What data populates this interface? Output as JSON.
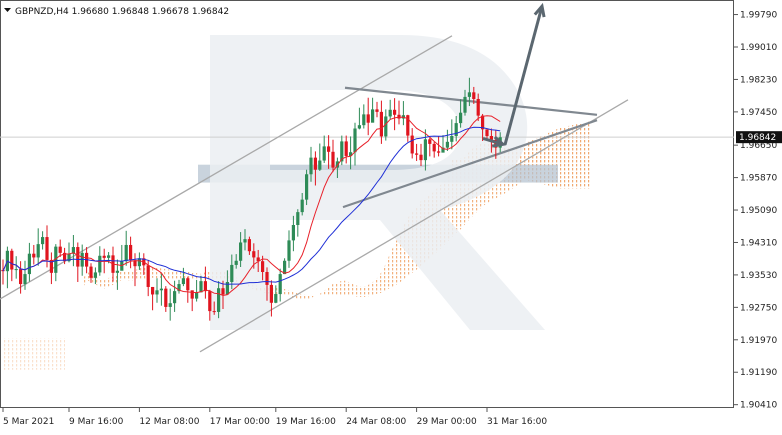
{
  "chart_data": {
    "type": "candlestick",
    "symbol_line": "GBPNZD,H4  1.96680  1.96848  1.96678  1.96842",
    "current_price": 1.96842,
    "current_price_label": "1.96842",
    "ylim": [
      1.9033,
      2.0014
    ],
    "y_ticks": [
      {
        "value": 1.9979,
        "label": "1.99790"
      },
      {
        "value": 1.9901,
        "label": "1.99010"
      },
      {
        "value": 1.9823,
        "label": "1.98230"
      },
      {
        "value": 1.9745,
        "label": "1.97450"
      },
      {
        "value": 1.9665,
        "label": "1.96650"
      },
      {
        "value": 1.9587,
        "label": "1.95870"
      },
      {
        "value": 1.9509,
        "label": "1.95090"
      },
      {
        "value": 1.9431,
        "label": "1.94310"
      },
      {
        "value": 1.9353,
        "label": "1.93530"
      },
      {
        "value": 1.9275,
        "label": "1.92750"
      },
      {
        "value": 1.9197,
        "label": "1.91970"
      },
      {
        "value": 1.9119,
        "label": "1.91190"
      },
      {
        "value": 1.9041,
        "label": "1.90410"
      }
    ],
    "x_ticks": [
      {
        "bar": 0,
        "label": "5 Mar 2021"
      },
      {
        "bar": 15,
        "label": "9 Mar 16:00"
      },
      {
        "bar": 31,
        "label": "12 Mar 08:00"
      },
      {
        "bar": 47,
        "label": "17 Mar 00:00"
      },
      {
        "bar": 62,
        "label": "19 Mar 16:00"
      },
      {
        "bar": 78,
        "label": "24 Mar 08:00"
      },
      {
        "bar": 94,
        "label": "29 Mar 00:00"
      },
      {
        "bar": 110,
        "label": "31 Mar 16:00"
      }
    ],
    "candles": [
      [
        1.9365,
        1.9362,
        1.939,
        1.933
      ],
      [
        1.9362,
        1.9411,
        1.9421,
        1.9321
      ],
      [
        1.9411,
        1.9366,
        1.9416,
        1.9338
      ],
      [
        1.9366,
        1.9367,
        1.9398,
        1.9344
      ],
      [
        1.9367,
        1.9331,
        1.9386,
        1.9308
      ],
      [
        1.9331,
        1.9355,
        1.9387,
        1.9317
      ],
      [
        1.9355,
        1.9404,
        1.943,
        1.9337
      ],
      [
        1.9404,
        1.9395,
        1.9425,
        1.9378
      ],
      [
        1.9395,
        1.9427,
        1.9465,
        1.9375
      ],
      [
        1.9427,
        1.9444,
        1.9458,
        1.9414
      ],
      [
        1.9444,
        1.9389,
        1.9472,
        1.9371
      ],
      [
        1.9389,
        1.9358,
        1.9407,
        1.9331
      ],
      [
        1.9358,
        1.9421,
        1.9427,
        1.9338
      ],
      [
        1.9421,
        1.9406,
        1.9438,
        1.9396
      ],
      [
        1.9406,
        1.9386,
        1.9418,
        1.9379
      ],
      [
        1.9386,
        1.9404,
        1.9431,
        1.9383
      ],
      [
        1.9404,
        1.942,
        1.9449,
        1.9374
      ],
      [
        1.942,
        1.9373,
        1.9431,
        1.9336
      ],
      [
        1.9373,
        1.9406,
        1.9426,
        1.9351
      ],
      [
        1.9406,
        1.9373,
        1.942,
        1.9357
      ],
      [
        1.9373,
        1.9346,
        1.9381,
        1.9334
      ],
      [
        1.9346,
        1.9359,
        1.9371,
        1.9331
      ],
      [
        1.9359,
        1.9399,
        1.9422,
        1.9351
      ],
      [
        1.9399,
        1.9394,
        1.9416,
        1.9357
      ],
      [
        1.9394,
        1.94,
        1.9408,
        1.9381
      ],
      [
        1.94,
        1.9358,
        1.9421,
        1.9337
      ],
      [
        1.9358,
        1.9363,
        1.939,
        1.9317
      ],
      [
        1.9363,
        1.9386,
        1.9425,
        1.9371
      ],
      [
        1.9386,
        1.9425,
        1.9459,
        1.9375
      ],
      [
        1.9425,
        1.9388,
        1.9445,
        1.9369
      ],
      [
        1.9388,
        1.9374,
        1.9405,
        1.9326
      ],
      [
        1.9374,
        1.9393,
        1.9407,
        1.9365
      ],
      [
        1.9393,
        1.9376,
        1.9405,
        1.9353
      ],
      [
        1.9376,
        1.9324,
        1.9389,
        1.9302
      ],
      [
        1.9324,
        1.9306,
        1.9324,
        1.9268
      ],
      [
        1.9306,
        1.9316,
        1.9345,
        1.9286
      ],
      [
        1.9316,
        1.932,
        1.9356,
        1.9279
      ],
      [
        1.932,
        1.9276,
        1.9326,
        1.9264
      ],
      [
        1.9276,
        1.9285,
        1.932,
        1.9243
      ],
      [
        1.9285,
        1.9314,
        1.9339,
        1.9264
      ],
      [
        1.9314,
        1.9331,
        1.9341,
        1.9308
      ],
      [
        1.9331,
        1.9345,
        1.937,
        1.9326
      ],
      [
        1.9345,
        1.9316,
        1.9349,
        1.9286
      ],
      [
        1.9316,
        1.9296,
        1.9306,
        1.9266
      ],
      [
        1.9296,
        1.9311,
        1.9341,
        1.9289
      ],
      [
        1.9311,
        1.9338,
        1.9351,
        1.9313
      ],
      [
        1.9338,
        1.9314,
        1.9373,
        1.9296
      ],
      [
        1.9314,
        1.9266,
        1.9317,
        1.9243
      ],
      [
        1.9266,
        1.9264,
        1.9289,
        1.9257
      ],
      [
        1.9264,
        1.9321,
        1.9338,
        1.9249
      ],
      [
        1.9321,
        1.9306,
        1.9339,
        1.9271
      ],
      [
        1.9306,
        1.9336,
        1.9364,
        1.9309
      ],
      [
        1.9336,
        1.9377,
        1.9402,
        1.9319
      ],
      [
        1.9377,
        1.9387,
        1.9403,
        1.9368
      ],
      [
        1.9387,
        1.9431,
        1.9456,
        1.9372
      ],
      [
        1.9431,
        1.9439,
        1.9463,
        1.9412
      ],
      [
        1.9439,
        1.941,
        1.9445,
        1.9401
      ],
      [
        1.941,
        1.9395,
        1.9429,
        1.9368
      ],
      [
        1.9395,
        1.9386,
        1.9413,
        1.936
      ],
      [
        1.9386,
        1.936,
        1.9399,
        1.934
      ],
      [
        1.936,
        1.9329,
        1.9371,
        1.9291
      ],
      [
        1.9329,
        1.9286,
        1.934,
        1.9253
      ],
      [
        1.9286,
        1.9307,
        1.9328,
        1.9285
      ],
      [
        1.9307,
        1.9355,
        1.9368,
        1.9289
      ],
      [
        1.9355,
        1.9387,
        1.9393,
        1.9355
      ],
      [
        1.9387,
        1.9436,
        1.946,
        1.937
      ],
      [
        1.9436,
        1.9473,
        1.9495,
        1.941
      ],
      [
        1.9473,
        1.9504,
        1.9511,
        1.9445
      ],
      [
        1.9504,
        1.9534,
        1.955,
        1.9496
      ],
      [
        1.9534,
        1.9595,
        1.9606,
        1.9521
      ],
      [
        1.9595,
        1.9635,
        1.9661,
        1.9577
      ],
      [
        1.9635,
        1.9606,
        1.965,
        1.9568
      ],
      [
        1.9606,
        1.9628,
        1.9669,
        1.9603
      ],
      [
        1.9628,
        1.9662,
        1.9688,
        1.9622
      ],
      [
        1.9662,
        1.9649,
        1.9689,
        1.9608
      ],
      [
        1.9649,
        1.9611,
        1.9678,
        1.96
      ],
      [
        1.9611,
        1.9626,
        1.9635,
        1.9586
      ],
      [
        1.9626,
        1.9674,
        1.9688,
        1.9617
      ],
      [
        1.9674,
        1.9639,
        1.9688,
        1.9621
      ],
      [
        1.9639,
        1.9648,
        1.9686,
        1.9607
      ],
      [
        1.9648,
        1.9705,
        1.9719,
        1.9616
      ],
      [
        1.9705,
        1.9713,
        1.9755,
        1.9703
      ],
      [
        1.9713,
        1.9739,
        1.9763,
        1.9705
      ],
      [
        1.9739,
        1.9719,
        1.9779,
        1.9689
      ],
      [
        1.9719,
        1.9751,
        1.9779,
        1.9734
      ],
      [
        1.9751,
        1.9745,
        1.9769,
        1.9732
      ],
      [
        1.9745,
        1.9686,
        1.9772,
        1.9668
      ],
      [
        1.9686,
        1.9734,
        1.9751,
        1.9676
      ],
      [
        1.9734,
        1.975,
        1.9774,
        1.9727
      ],
      [
        1.975,
        1.9738,
        1.9778,
        1.9701
      ],
      [
        1.9738,
        1.9729,
        1.9772,
        1.9715
      ],
      [
        1.9729,
        1.9737,
        1.9771,
        1.9713
      ],
      [
        1.9737,
        1.9688,
        1.9738,
        1.9673
      ],
      [
        1.9688,
        1.9645,
        1.9706,
        1.9633
      ],
      [
        1.9645,
        1.9642,
        1.9668,
        1.9627
      ],
      [
        1.9642,
        1.9629,
        1.9668,
        1.9615
      ],
      [
        1.9629,
        1.9679,
        1.9703,
        1.9604
      ],
      [
        1.9679,
        1.9668,
        1.9683,
        1.9638
      ],
      [
        1.9668,
        1.965,
        1.9673,
        1.9635
      ],
      [
        1.965,
        1.9647,
        1.9687,
        1.9638
      ],
      [
        1.9647,
        1.9659,
        1.9689,
        1.9653
      ],
      [
        1.9659,
        1.9673,
        1.9702,
        1.9651
      ],
      [
        1.9673,
        1.9687,
        1.9727,
        1.9655
      ],
      [
        1.9687,
        1.9718,
        1.9735,
        1.9674
      ],
      [
        1.9718,
        1.9743,
        1.9775,
        1.9707
      ],
      [
        1.9743,
        1.9781,
        1.9798,
        1.9736
      ],
      [
        1.9781,
        1.9792,
        1.9827,
        1.9759
      ],
      [
        1.9792,
        1.9776,
        1.9805,
        1.9764
      ],
      [
        1.9776,
        1.9736,
        1.9789,
        1.9723
      ],
      [
        1.9736,
        1.9703,
        1.974,
        1.9675
      ],
      [
        1.9703,
        1.9687,
        1.9703,
        1.9675
      ],
      [
        1.9687,
        1.9678,
        1.9705,
        1.9647
      ],
      [
        1.9678,
        1.9659,
        1.9701,
        1.9632
      ],
      [
        1.9659,
        1.9684,
        1.9696,
        1.9648
      ]
    ],
    "colors": {
      "bull": "#2e8b57",
      "bear": "#e0141e",
      "fast_ma": "#e8202a",
      "slow_ma": "#1f2fd6",
      "channel": "#a9a9a9",
      "arrow": "#5b6770",
      "cloud": "#f0a870",
      "zone": "#b7c4d1"
    }
  }
}
